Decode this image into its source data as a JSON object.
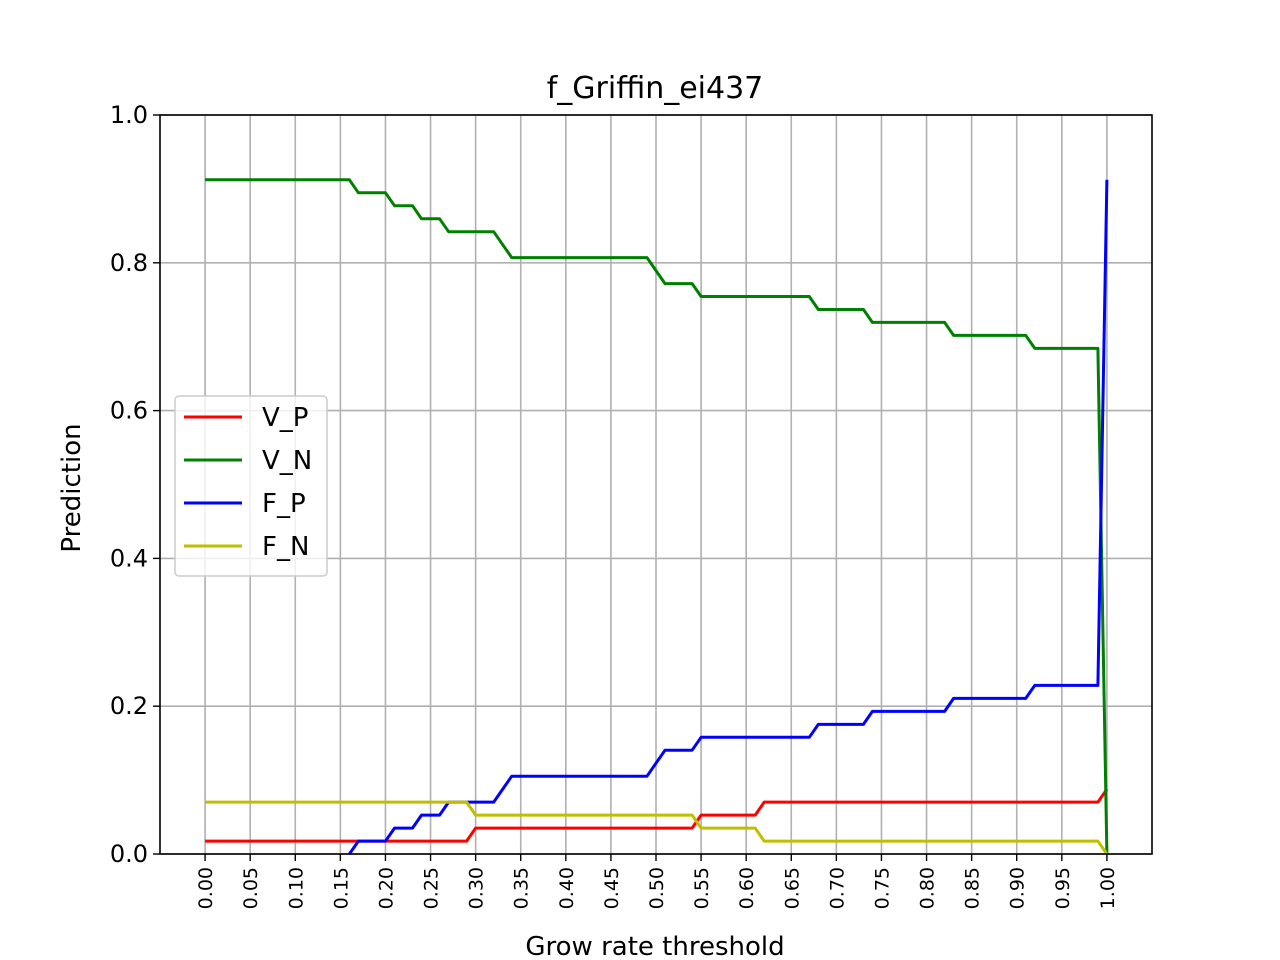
{
  "chart_data": {
    "type": "line",
    "title": "f_Griffin_ei437",
    "xlabel": "Grow rate threshold",
    "ylabel": "Prediction",
    "xlim": [
      -0.05,
      1.05
    ],
    "ylim": [
      0.0,
      1.0
    ],
    "grid": true,
    "legend_position": "center-left",
    "x_ticks": [
      "0.00",
      "0.05",
      "0.10",
      "0.15",
      "0.20",
      "0.25",
      "0.30",
      "0.35",
      "0.40",
      "0.45",
      "0.50",
      "0.55",
      "0.60",
      "0.65",
      "0.70",
      "0.75",
      "0.80",
      "0.85",
      "0.90",
      "0.95",
      "1.00"
    ],
    "y_ticks": [
      "0.0",
      "0.2",
      "0.4",
      "0.6",
      "0.8",
      "1.0"
    ],
    "series": [
      {
        "name": "V_P",
        "color": "#ff0000",
        "points": [
          [
            0.0,
            0.0175
          ],
          [
            0.29,
            0.0175
          ],
          [
            0.3,
            0.035
          ],
          [
            0.54,
            0.035
          ],
          [
            0.55,
            0.0526
          ],
          [
            0.61,
            0.0526
          ],
          [
            0.62,
            0.0702
          ],
          [
            0.99,
            0.0702
          ],
          [
            1.0,
            0.0877
          ]
        ]
      },
      {
        "name": "V_N",
        "color": "#008000",
        "points": [
          [
            0.0,
            0.9123
          ],
          [
            0.16,
            0.9123
          ],
          [
            0.17,
            0.8947
          ],
          [
            0.2,
            0.8947
          ],
          [
            0.21,
            0.8772
          ],
          [
            0.23,
            0.8772
          ],
          [
            0.24,
            0.8596
          ],
          [
            0.26,
            0.8596
          ],
          [
            0.27,
            0.8421
          ],
          [
            0.32,
            0.8421
          ],
          [
            0.34,
            0.807
          ],
          [
            0.49,
            0.807
          ],
          [
            0.51,
            0.7719
          ],
          [
            0.54,
            0.7719
          ],
          [
            0.55,
            0.7544
          ],
          [
            0.67,
            0.7544
          ],
          [
            0.68,
            0.7368
          ],
          [
            0.73,
            0.7368
          ],
          [
            0.74,
            0.7193
          ],
          [
            0.82,
            0.7193
          ],
          [
            0.83,
            0.7018
          ],
          [
            0.91,
            0.7018
          ],
          [
            0.92,
            0.6842
          ],
          [
            0.99,
            0.6842
          ],
          [
            1.0,
            0.0
          ]
        ]
      },
      {
        "name": "F_P",
        "color": "#0000ff",
        "points": [
          [
            0.16,
            0.0
          ],
          [
            0.17,
            0.0175
          ],
          [
            0.2,
            0.0175
          ],
          [
            0.21,
            0.035
          ],
          [
            0.23,
            0.035
          ],
          [
            0.24,
            0.0526
          ],
          [
            0.26,
            0.0526
          ],
          [
            0.27,
            0.0702
          ],
          [
            0.32,
            0.0702
          ],
          [
            0.34,
            0.1053
          ],
          [
            0.49,
            0.1053
          ],
          [
            0.51,
            0.1404
          ],
          [
            0.54,
            0.1404
          ],
          [
            0.55,
            0.1579
          ],
          [
            0.67,
            0.1579
          ],
          [
            0.68,
            0.1754
          ],
          [
            0.73,
            0.1754
          ],
          [
            0.74,
            0.193
          ],
          [
            0.82,
            0.193
          ],
          [
            0.83,
            0.2105
          ],
          [
            0.91,
            0.2105
          ],
          [
            0.92,
            0.2281
          ],
          [
            0.99,
            0.2281
          ],
          [
            1.0,
            0.9123
          ]
        ]
      },
      {
        "name": "F_N",
        "color": "#bfbf00",
        "points": [
          [
            0.0,
            0.0702
          ],
          [
            0.29,
            0.0702
          ],
          [
            0.3,
            0.0526
          ],
          [
            0.54,
            0.0526
          ],
          [
            0.55,
            0.035
          ],
          [
            0.61,
            0.035
          ],
          [
            0.62,
            0.0175
          ],
          [
            0.99,
            0.0175
          ],
          [
            1.0,
            0.0
          ]
        ]
      }
    ]
  }
}
